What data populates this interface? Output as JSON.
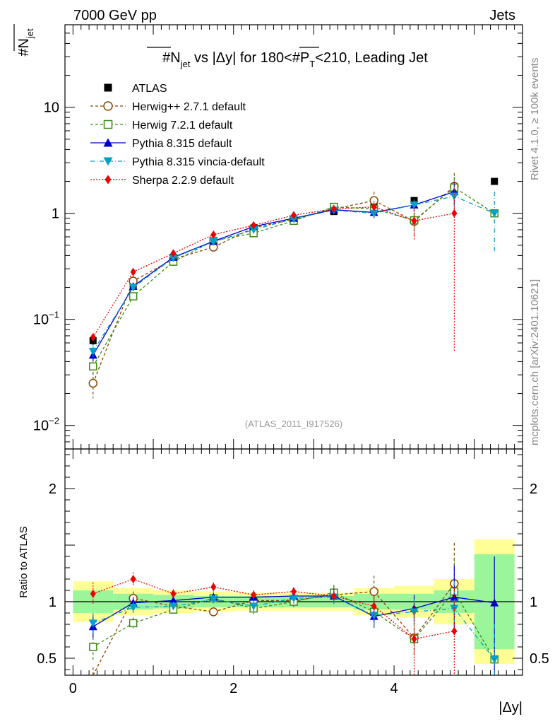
{
  "header": {
    "left": "7000 GeV pp",
    "right": "Jets",
    "side_top": "Rivet 4.1.0, ≥ 100k events",
    "side_bottom": "mcplots.cern.ch [arXiv:2401.10621]",
    "watermark": "(ATLAS_2011_I917526)"
  },
  "chart_data": [
    {
      "type": "scatter",
      "panel": "main",
      "title": "#N̄_jet vs |Δy| for 180<#P̄_T<210, Leading Jet",
      "title_parts": {
        "a": "#N",
        "a_sub": "jet",
        "b": " vs |Δy| for 180<#",
        "c": "P",
        "c_sub": "T",
        "d": "<210, Leading Jet"
      },
      "ylabel": "#N̄jet",
      "ylabel_parts": {
        "main": "#N",
        "sub": "jet"
      },
      "xlabel": "|Δy|",
      "yscale": "log",
      "ylim": [
        0.006,
        60
      ],
      "xlim": [
        -0.1,
        5.6
      ],
      "y_ticks": [
        {
          "value": 0.01,
          "base": "10",
          "exp": "−2"
        },
        {
          "value": 0.1,
          "base": "10",
          "exp": "−1"
        },
        {
          "value": 1,
          "label": "1"
        },
        {
          "value": 10,
          "label": "10"
        }
      ],
      "x_ticks": [
        0,
        2,
        4
      ],
      "x": [
        0.25,
        0.75,
        1.25,
        1.75,
        2.25,
        2.75,
        3.25,
        3.75,
        4.25,
        4.75,
        5.25
      ],
      "series": [
        {
          "name": "ATLAS",
          "color": "#000000",
          "marker": "square-filled",
          "dash": "none",
          "values": [
            0.063,
            0.21,
            0.385,
            0.525,
            0.725,
            0.87,
            1.04,
            1.2,
            1.32,
            1.6,
            2.0
          ],
          "err_lo": [
            0.057,
            0.19,
            0.365,
            0.5,
            0.7,
            0.84,
            1.0,
            1.15,
            1.25,
            1.5,
            2.0
          ],
          "err_hi": [
            0.069,
            0.23,
            0.405,
            0.55,
            0.75,
            0.9,
            1.08,
            1.25,
            1.39,
            1.7,
            2.0
          ]
        },
        {
          "name": "Herwig++ 2.7.1 default",
          "color": "#8B4500",
          "marker": "circle-open",
          "dash": "4,3",
          "values": [
            0.025,
            0.23,
            0.37,
            0.48,
            0.73,
            0.88,
            1.1,
            1.32,
            0.84,
            1.8,
            null
          ],
          "err_lo": [
            0.018,
            0.2,
            0.34,
            0.44,
            0.68,
            0.82,
            1.0,
            1.1,
            0.6,
            1.3,
            null
          ],
          "err_hi": [
            0.032,
            0.26,
            0.4,
            0.52,
            0.78,
            0.94,
            1.2,
            1.6,
            1.1,
            2.4,
            null
          ]
        },
        {
          "name": "Herwig 7.2.1 default",
          "color": "#3C8C14",
          "marker": "square-open",
          "dash": "4,3",
          "values": [
            0.036,
            0.165,
            0.35,
            0.55,
            0.65,
            0.85,
            1.15,
            1.1,
            0.86,
            1.75,
            1.0
          ],
          "err_lo": [
            0.028,
            0.15,
            0.33,
            0.52,
            0.61,
            0.8,
            1.08,
            0.95,
            0.7,
            1.3,
            1.0
          ],
          "err_hi": [
            0.044,
            0.18,
            0.37,
            0.58,
            0.69,
            0.9,
            1.22,
            1.25,
            1.0,
            2.2,
            1.0
          ]
        },
        {
          "name": "Pythia 8.315 default",
          "color": "#0000CC",
          "marker": "triangle-up",
          "dash": "none",
          "values": [
            0.046,
            0.205,
            0.385,
            0.545,
            0.75,
            0.9,
            1.08,
            1.02,
            1.2,
            1.6,
            null
          ],
          "err_lo": [
            0.04,
            0.19,
            0.36,
            0.52,
            0.71,
            0.85,
            1.02,
            0.9,
            1.05,
            1.2,
            null
          ],
          "err_hi": [
            0.052,
            0.22,
            0.41,
            0.57,
            0.79,
            0.95,
            1.14,
            1.14,
            1.35,
            2.0,
            null
          ]
        },
        {
          "name": "Pythia 8.315 vincia-default",
          "color": "#00A0C8",
          "marker": "triangle-down",
          "dash": "6,3,1,3",
          "values": [
            0.05,
            0.2,
            0.38,
            0.54,
            0.7,
            0.89,
            1.07,
            1.0,
            1.2,
            1.45,
            1.0
          ],
          "err_lo": [
            0.044,
            0.185,
            0.355,
            0.51,
            0.66,
            0.84,
            1.01,
            0.9,
            1.05,
            1.1,
            0.42
          ],
          "err_hi": [
            0.056,
            0.215,
            0.405,
            0.57,
            0.74,
            0.94,
            1.13,
            1.1,
            1.35,
            1.8,
            1.6
          ]
        },
        {
          "name": "Sherpa 2.2.9 default",
          "color": "#EE0000",
          "marker": "diamond",
          "dash": "2,2",
          "values": [
            0.068,
            0.28,
            0.42,
            0.63,
            0.77,
            0.96,
            1.1,
            1.15,
            0.85,
            1.0,
            null
          ],
          "err_lo": [
            0.062,
            0.26,
            0.4,
            0.6,
            0.74,
            0.92,
            1.05,
            1.0,
            0.55,
            0.05,
            null
          ],
          "err_hi": [
            0.074,
            0.3,
            0.44,
            0.66,
            0.8,
            1.0,
            1.15,
            1.3,
            1.15,
            1.95,
            null
          ]
        }
      ]
    },
    {
      "type": "scatter",
      "panel": "ratio",
      "ylabel": "Ratio to ATLAS",
      "xlabel": "|Δy|",
      "ylim": [
        0.35,
        2.35
      ],
      "xlim": [
        -0.1,
        5.6
      ],
      "y_ticks": [
        0.5,
        1,
        2
      ],
      "x_ticks": [
        0,
        2,
        4
      ],
      "reference_line": 1,
      "bands": {
        "x_edges": [
          [
            0.0,
            0.5
          ],
          [
            0.5,
            1.0
          ],
          [
            1.0,
            1.5
          ],
          [
            1.5,
            2.0
          ],
          [
            2.0,
            2.5
          ],
          [
            2.5,
            3.0
          ],
          [
            3.0,
            3.5
          ],
          [
            3.5,
            4.0
          ],
          [
            4.0,
            4.5
          ],
          [
            4.5,
            5.0
          ],
          [
            5.0,
            5.5
          ]
        ],
        "stat_lo": [
          0.9,
          0.93,
          0.94,
          0.95,
          0.95,
          0.95,
          0.95,
          0.93,
          0.93,
          0.9,
          0.58
        ],
        "stat_hi": [
          1.1,
          1.07,
          1.06,
          1.05,
          1.05,
          1.05,
          1.05,
          1.07,
          1.07,
          1.1,
          1.42
        ],
        "total_lo": [
          0.82,
          0.88,
          0.9,
          0.91,
          0.92,
          0.92,
          0.92,
          0.88,
          0.86,
          0.8,
          0.45
        ],
        "total_hi": [
          1.18,
          1.12,
          1.1,
          1.09,
          1.08,
          1.08,
          1.08,
          1.12,
          1.14,
          1.2,
          1.55
        ],
        "stat_color": "#9BF59B",
        "total_color": "#FFFF96"
      },
      "series": [
        {
          "name": "Herwig++ 2.7.1 default",
          "color": "#8B4500",
          "marker": "circle-open",
          "dash": "4,3",
          "values": [
            0.3,
            1.03,
            0.96,
            0.91,
            1.01,
            1.01,
            1.06,
            1.09,
            0.68,
            1.16,
            null
          ],
          "err_lo": [
            0.2,
            0.97,
            0.92,
            0.87,
            0.95,
            0.96,
            0.98,
            0.95,
            0.5,
            0.8,
            null
          ],
          "err_hi": [
            0.42,
            1.09,
            1.0,
            0.95,
            1.07,
            1.06,
            1.14,
            1.23,
            0.86,
            1.52,
            null
          ]
        },
        {
          "name": "Herwig 7.2.1 default",
          "color": "#3C8C14",
          "marker": "square-open",
          "dash": "4,3",
          "values": [
            0.6,
            0.81,
            0.93,
            1.03,
            0.94,
            1.0,
            1.08,
            0.91,
            0.67,
            1.09,
            0.49
          ],
          "err_lo": [
            0.47,
            0.76,
            0.89,
            0.99,
            0.89,
            0.95,
            1.01,
            0.79,
            0.53,
            0.8,
            0.49
          ],
          "err_hi": [
            0.73,
            0.86,
            0.97,
            1.07,
            0.99,
            1.05,
            1.15,
            1.03,
            0.81,
            1.38,
            0.49
          ]
        },
        {
          "name": "Pythia 8.315 default",
          "color": "#0000CC",
          "marker": "triangle-up",
          "dash": "none",
          "values": [
            0.78,
            0.99,
            1.01,
            1.04,
            1.04,
            1.05,
            1.05,
            0.87,
            0.94,
            1.04,
            0.99
          ],
          "err_lo": [
            0.68,
            0.94,
            0.97,
            1.0,
            0.99,
            1.0,
            0.99,
            0.77,
            0.82,
            0.76,
            0.35
          ],
          "err_hi": [
            0.88,
            1.04,
            1.05,
            1.08,
            1.09,
            1.1,
            1.11,
            0.97,
            1.06,
            1.32,
            1.4
          ]
        },
        {
          "name": "Pythia 8.315 vincia-default",
          "color": "#00A0C8",
          "marker": "triangle-down",
          "dash": "6,3,1,3",
          "values": [
            0.81,
            0.95,
            0.96,
            1.02,
            0.96,
            1.03,
            1.04,
            0.88,
            0.91,
            0.94,
            0.49
          ],
          "err_lo": [
            0.72,
            0.9,
            0.92,
            0.98,
            0.91,
            0.98,
            0.98,
            0.78,
            0.8,
            0.7,
            0.35
          ],
          "err_hi": [
            0.9,
            1.0,
            1.0,
            1.06,
            1.01,
            1.08,
            1.1,
            0.98,
            1.02,
            1.18,
            0.8
          ]
        },
        {
          "name": "Sherpa 2.2.9 default",
          "color": "#EE0000",
          "marker": "diamond",
          "dash": "2,2",
          "values": [
            1.07,
            1.2,
            1.07,
            1.13,
            1.06,
            1.09,
            1.05,
            0.96,
            0.67,
            0.74,
            null
          ],
          "err_lo": [
            0.97,
            1.14,
            1.03,
            1.09,
            1.02,
            1.05,
            1.0,
            0.86,
            0.35,
            0.35,
            null
          ],
          "err_hi": [
            1.17,
            1.26,
            1.11,
            1.17,
            1.1,
            1.13,
            1.1,
            1.06,
            0.99,
            1.15,
            null
          ]
        }
      ]
    }
  ]
}
